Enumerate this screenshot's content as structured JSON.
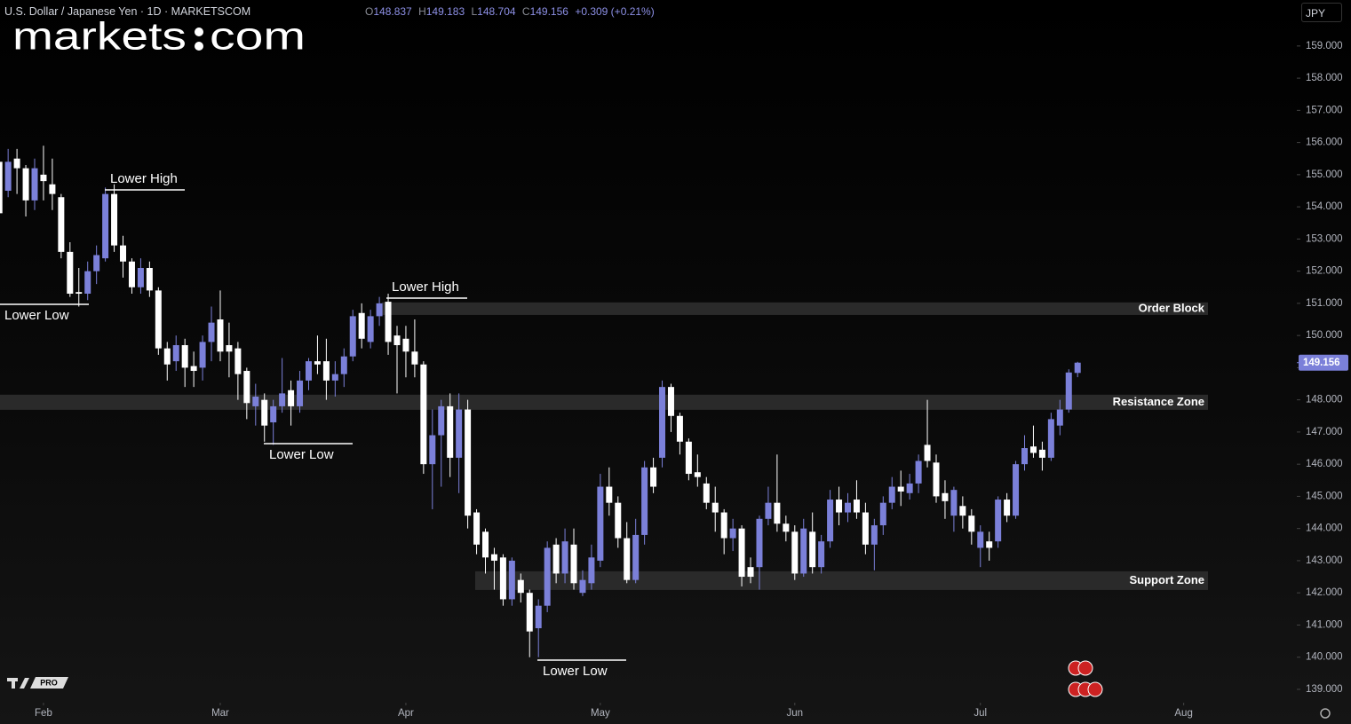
{
  "header": {
    "symbol": "U.S. Dollar / Japanese Yen · 1D · MARKETSCOM",
    "change": "+0.309 (+0.21%)",
    "currency": "JPY",
    "ohlc_labels": [
      "O",
      "H",
      "L",
      "C"
    ],
    "logo": [
      "markets",
      "com"
    ],
    "badge": "PRO"
  },
  "chart_data": {
    "type": "candlestick",
    "up_color": "#7b80d9",
    "down_color": "#ffffff",
    "x": [
      -5,
      -4,
      -3,
      -2,
      -1,
      0,
      1,
      2,
      3,
      4,
      5,
      6,
      7,
      8,
      9,
      10,
      11,
      12,
      13,
      14,
      15,
      16,
      17,
      18,
      19,
      20,
      21,
      22,
      23,
      24,
      25,
      26,
      27,
      28,
      29,
      30,
      31,
      32,
      33,
      34,
      35,
      36,
      37,
      38,
      39,
      40,
      41,
      42,
      43,
      44,
      45,
      46,
      47,
      48,
      49,
      50,
      51,
      52,
      53,
      54,
      55,
      56,
      57,
      58,
      59,
      60,
      61,
      62,
      63,
      64,
      65,
      66,
      67,
      68,
      69,
      70,
      71,
      72,
      73,
      74,
      75,
      76,
      77,
      78,
      79,
      80,
      81,
      82,
      83,
      84,
      85,
      86,
      87,
      88,
      89,
      90,
      91,
      92,
      93,
      94,
      95,
      96,
      97,
      98,
      99,
      100,
      101,
      102,
      103,
      104,
      105,
      106,
      107,
      108,
      109,
      110,
      111,
      112,
      113,
      114,
      115,
      116,
      117
    ],
    "open": [
      155.4,
      154.5,
      155.5,
      155.2,
      154.2,
      155.0,
      154.7,
      154.3,
      152.6,
      151.35,
      151.3,
      152.0,
      152.4,
      154.4,
      152.8,
      152.3,
      151.5,
      152.1,
      151.4,
      149.6,
      149.2,
      149.7,
      149.05,
      149.0,
      149.8,
      150.5,
      149.7,
      149.6,
      148.9,
      147.8,
      148.0,
      147.3,
      147.8,
      148.3,
      147.8,
      148.6,
      149.2,
      149.2,
      148.6,
      148.8,
      149.35,
      150.7,
      149.8,
      150.6,
      151.05,
      150.0,
      149.9,
      149.5,
      149.1,
      146.0,
      146.9,
      147.8,
      146.2,
      147.7,
      144.5,
      143.9,
      143.2,
      143.1,
      141.8,
      142.4,
      142.0,
      140.9,
      141.6,
      143.5,
      142.6,
      143.5,
      142.0,
      142.3,
      143.0,
      145.3,
      144.8,
      143.7,
      142.4,
      143.8,
      145.9,
      146.2,
      148.4,
      147.5,
      146.7,
      145.75,
      145.4,
      144.8,
      144.5,
      143.7,
      144.0,
      142.8,
      142.8,
      144.3,
      144.8,
      144.15,
      143.9,
      142.6,
      143.9,
      142.8,
      143.6,
      144.9,
      144.5,
      144.9,
      144.5,
      143.5,
      144.1,
      144.8,
      145.3,
      145.1,
      145.4,
      146.6,
      146.05,
      145.1,
      144.4,
      144.7,
      144.4,
      143.4,
      143.6,
      143.6,
      144.9,
      144.4,
      146.0,
      146.55,
      146.45,
      146.2,
      147.2,
      147.7,
      148.837
    ],
    "high": [
      156.2,
      155.8,
      155.8,
      155.3,
      155.5,
      155.9,
      155.5,
      154.4,
      152.9,
      152.1,
      152.3,
      152.8,
      154.6,
      154.7,
      153.1,
      152.4,
      152.4,
      152.3,
      151.5,
      149.8,
      150.0,
      149.9,
      149.5,
      150.0,
      150.9,
      151.4,
      150.4,
      149.8,
      149.0,
      148.5,
      148.2,
      148.0,
      149.3,
      148.6,
      148.9,
      149.3,
      150.0,
      149.9,
      149.2,
      149.6,
      150.8,
      151.0,
      150.8,
      151.2,
      151.3,
      150.3,
      150.3,
      150.5,
      149.2,
      147.7,
      148.0,
      148.2,
      148.2,
      148.0,
      144.6,
      144.0,
      143.4,
      143.2,
      143.1,
      142.6,
      142.1,
      141.8,
      143.6,
      143.7,
      144.0,
      144.0,
      142.7,
      143.5,
      145.7,
      145.9,
      145.0,
      144.2,
      144.3,
      146.1,
      146.2,
      148.6,
      148.5,
      147.6,
      146.8,
      146.3,
      145.6,
      145.3,
      144.6,
      144.3,
      144.1,
      143.1,
      144.4,
      145.3,
      146.3,
      144.4,
      144.1,
      144.3,
      144.5,
      143.8,
      145.2,
      145.3,
      145.1,
      145.5,
      144.8,
      144.3,
      145.0,
      145.6,
      145.8,
      145.7,
      146.3,
      148.0,
      146.3,
      145.5,
      145.3,
      145.0,
      144.6,
      144.1,
      143.9,
      145.0,
      145.1,
      146.1,
      146.9,
      147.2,
      146.7,
      147.6,
      148.0,
      148.95,
      149.183
    ],
    "low": [
      153.6,
      154.3,
      154.4,
      153.7,
      153.9,
      154.2,
      153.9,
      152.4,
      151.2,
      150.9,
      151.1,
      151.6,
      152.3,
      152.6,
      151.8,
      151.3,
      151.3,
      151.2,
      149.4,
      148.6,
      148.9,
      148.4,
      148.4,
      148.6,
      149.2,
      149.2,
      148.7,
      148.0,
      147.4,
      147.2,
      146.7,
      146.6,
      147.6,
      147.2,
      147.6,
      148.3,
      148.8,
      148.0,
      148.1,
      148.4,
      149.2,
      149.6,
      149.6,
      150.3,
      149.4,
      148.2,
      148.7,
      148.7,
      145.7,
      144.6,
      145.3,
      145.6,
      145.1,
      144.0,
      143.2,
      142.6,
      142.1,
      141.6,
      141.6,
      141.7,
      140.0,
      140.0,
      141.4,
      142.3,
      142.3,
      142.1,
      141.9,
      142.1,
      142.8,
      144.4,
      143.4,
      142.3,
      142.3,
      143.5,
      145.1,
      145.9,
      147.0,
      146.3,
      145.5,
      145.3,
      144.6,
      143.9,
      143.2,
      143.3,
      142.2,
      142.3,
      142.1,
      144.1,
      143.9,
      143.6,
      142.4,
      142.5,
      142.6,
      142.6,
      143.4,
      144.1,
      144.2,
      144.3,
      143.2,
      142.7,
      143.8,
      144.6,
      144.7,
      144.9,
      145.1,
      145.9,
      144.8,
      144.3,
      143.9,
      144.0,
      143.5,
      142.8,
      143.0,
      143.4,
      144.2,
      144.3,
      145.8,
      146.2,
      145.8,
      146.1,
      146.9,
      147.6,
      148.704
    ],
    "close": [
      153.8,
      155.4,
      155.2,
      154.2,
      155.2,
      154.8,
      154.4,
      152.6,
      151.3,
      151.3,
      152.0,
      152.5,
      154.4,
      152.8,
      152.3,
      151.5,
      152.1,
      151.4,
      149.6,
      149.1,
      149.7,
      149.0,
      148.9,
      149.8,
      150.4,
      149.5,
      149.5,
      148.8,
      147.9,
      148.1,
      147.2,
      147.8,
      148.2,
      147.8,
      148.6,
      149.2,
      149.1,
      148.6,
      148.8,
      149.35,
      150.6,
      149.9,
      150.6,
      151.0,
      149.8,
      149.7,
      149.5,
      149.1,
      146.0,
      146.9,
      147.8,
      146.2,
      147.7,
      144.4,
      143.5,
      143.1,
      143.0,
      141.8,
      143.0,
      142.0,
      140.8,
      141.6,
      143.4,
      142.6,
      143.6,
      142.3,
      142.4,
      143.1,
      145.3,
      144.8,
      143.7,
      142.4,
      143.8,
      145.9,
      145.3,
      148.4,
      147.5,
      146.7,
      145.7,
      145.6,
      144.8,
      144.5,
      143.7,
      144.0,
      142.5,
      142.5,
      144.3,
      144.8,
      144.15,
      143.9,
      142.6,
      144.0,
      142.8,
      143.6,
      144.9,
      144.5,
      144.8,
      144.5,
      143.5,
      144.1,
      144.8,
      145.3,
      145.15,
      145.4,
      146.1,
      146.1,
      145.0,
      144.85,
      145.2,
      144.4,
      143.9,
      143.9,
      143.4,
      144.9,
      144.4,
      146.0,
      146.5,
      146.35,
      146.2,
      147.4,
      147.7,
      148.85,
      149.156
    ],
    "xlim": [
      -4.92,
      141.8
    ],
    "xticks": [
      {
        "value": 0,
        "label": "Feb"
      },
      {
        "value": 20,
        "label": "Mar"
      },
      {
        "value": 41,
        "label": "Apr"
      },
      {
        "value": 63,
        "label": "May"
      },
      {
        "value": 85,
        "label": "Jun"
      },
      {
        "value": 106,
        "label": "Jul"
      },
      {
        "value": 129,
        "label": "Aug"
      }
    ],
    "ylim": [
      138.64,
      160.43
    ],
    "yticks": [
      {
        "value": 139,
        "label": "139.000"
      },
      {
        "value": 140,
        "label": "140.000"
      },
      {
        "value": 141,
        "label": "141.000"
      },
      {
        "value": 142,
        "label": "142.000"
      },
      {
        "value": 143,
        "label": "143.000"
      },
      {
        "value": 144,
        "label": "144.000"
      },
      {
        "value": 145,
        "label": "145.000"
      },
      {
        "value": 146,
        "label": "146.000"
      },
      {
        "value": 147,
        "label": "147.000"
      },
      {
        "value": 148,
        "label": "148.000"
      },
      {
        "value": 149,
        "label": "149.000"
      },
      {
        "value": 150,
        "label": "150.000"
      },
      {
        "value": 151,
        "label": "151.000"
      },
      {
        "value": 152,
        "label": "152.000"
      },
      {
        "value": 153,
        "label": "153.000"
      },
      {
        "value": 154,
        "label": "154.000"
      },
      {
        "value": 155,
        "label": "155.000"
      },
      {
        "value": 156,
        "label": "156.000"
      },
      {
        "value": 157,
        "label": "157.000"
      },
      {
        "value": 158,
        "label": "158.000"
      },
      {
        "value": 159,
        "label": "159.000"
      }
    ],
    "zones": [
      {
        "label": "Order Block",
        "low": 150.64,
        "high": 151.03
      },
      {
        "label": "Resistance Zone",
        "low": 147.69,
        "high": 148.16
      },
      {
        "label": "Support Zone",
        "low": 142.09,
        "high": 142.67
      }
    ],
    "annotations": [
      "Lower High",
      "Lower Low",
      "Lower High",
      "Lower Low",
      "Lower Low"
    ]
  }
}
